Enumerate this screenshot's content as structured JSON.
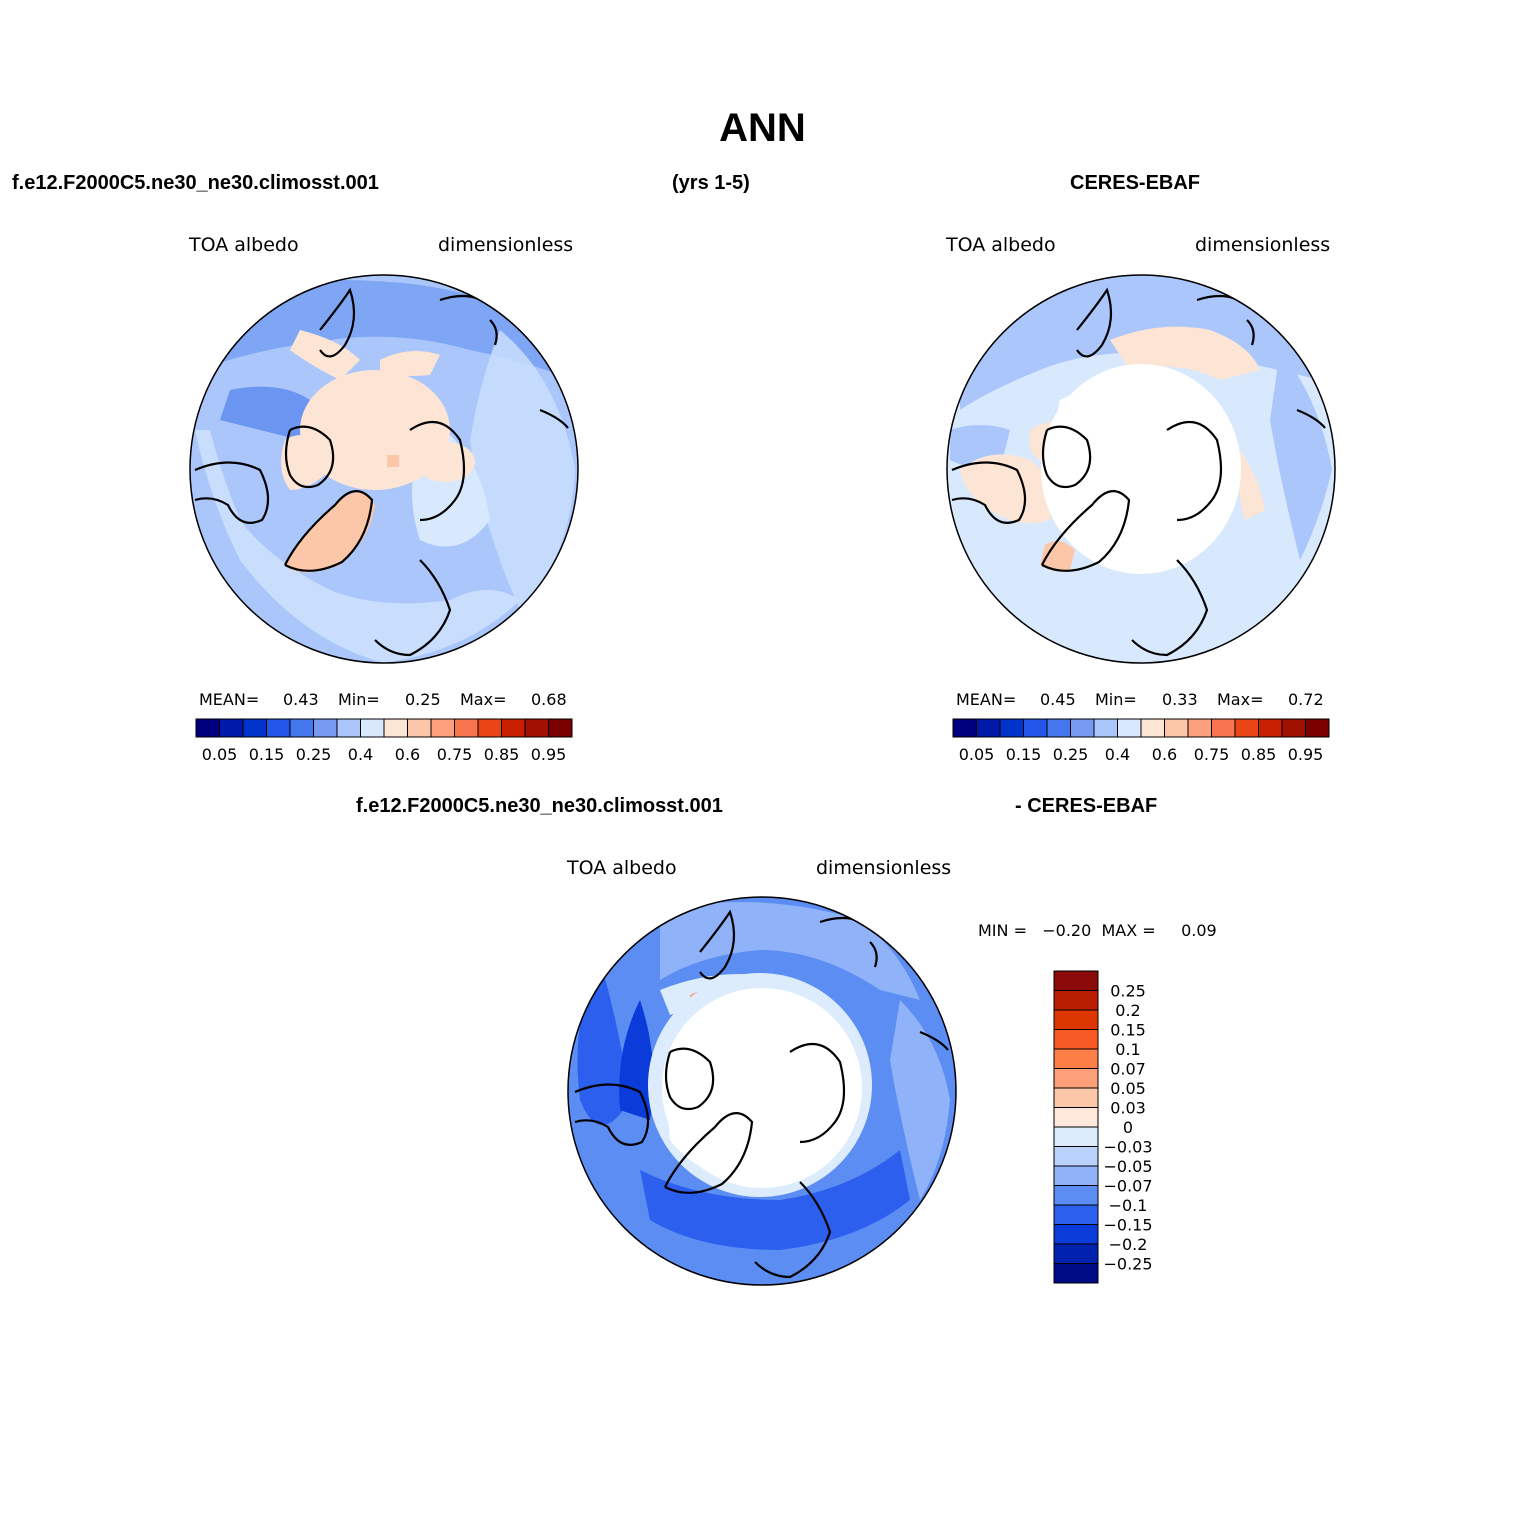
{
  "title": "ANN",
  "header": {
    "case_name": "f.e12.F2000C5.ne30_ne30.climosst.001",
    "years": "(yrs 1-5)",
    "obs_name": "CERES-EBAF"
  },
  "panels": [
    {
      "name": "model",
      "variable": "TOA albedo",
      "units": "dimensionless",
      "mean_label": "MEAN=",
      "mean": "0.43",
      "min_label": "Min=",
      "min": "0.25",
      "max_label": "Max=",
      "max": "0.68"
    },
    {
      "name": "obs",
      "variable": "TOA albedo",
      "units": "dimensionless",
      "mean_label": "MEAN=",
      "mean": "0.45",
      "min_label": "Min=",
      "min": "0.33",
      "max_label": "Max=",
      "max": "0.72"
    }
  ],
  "difference": {
    "title_left": "f.e12.F2000C5.ne30_ne30.climosst.001",
    "title_right": "- CERES-EBAF",
    "variable": "TOA albedo",
    "units": "dimensionless",
    "minmax_text": "MIN =   −0.20  MAX =     0.09"
  },
  "colorbar_horizontal": {
    "colors": [
      "#00007f",
      "#0019a8",
      "#0033cc",
      "#2255e8",
      "#4477ee",
      "#7799f0",
      "#aac6fb",
      "#d8e9fe",
      "#fde5d5",
      "#fcc6a8",
      "#fb9f7c",
      "#f87550",
      "#eb4416",
      "#c82000",
      "#a01000",
      "#7a0000"
    ],
    "tick_labels": [
      "0.05",
      "0.15",
      "0.25",
      "0.4",
      "0.6",
      "0.75",
      "0.85",
      "0.95"
    ]
  },
  "colorbar_vertical": {
    "colors_top_to_bottom": [
      "#8b0a0a",
      "#b91e00",
      "#dc3700",
      "#f75a24",
      "#fb7f47",
      "#fca079",
      "#fcc7a8",
      "#fde8db",
      "#dcecfd",
      "#b8d2fc",
      "#8fb2f8",
      "#5b8df2",
      "#2c5fee",
      "#0b3bd8",
      "#0022ae",
      "#000c86"
    ],
    "tick_labels": [
      "0.25",
      "0.2",
      "0.15",
      "0.1",
      "0.07",
      "0.05",
      "0.03",
      "0",
      "−0.03",
      "−0.05",
      "−0.07",
      "−0.1",
      "−0.15",
      "−0.2",
      "−0.25"
    ]
  },
  "chart_data": [
    {
      "type": "map",
      "projection": "north polar stereographic",
      "title": "TOA albedo",
      "subtitle": "f.e12.F2000C5.ne30_ne30.climosst.001 (yrs 1-5)",
      "units": "dimensionless",
      "mean": 0.43,
      "min": 0.25,
      "max": 0.68
    },
    {
      "type": "map",
      "projection": "north polar stereographic",
      "title": "TOA albedo",
      "subtitle": "CERES-EBAF",
      "units": "dimensionless",
      "mean": 0.45,
      "min": 0.33,
      "max": 0.72
    },
    {
      "type": "map",
      "projection": "north polar stereographic",
      "title": "TOA albedo",
      "subtitle": "f.e12.F2000C5.ne30_ne30.climosst.001 - CERES-EBAF",
      "units": "dimensionless",
      "min": -0.2,
      "max": 0.09
    }
  ]
}
